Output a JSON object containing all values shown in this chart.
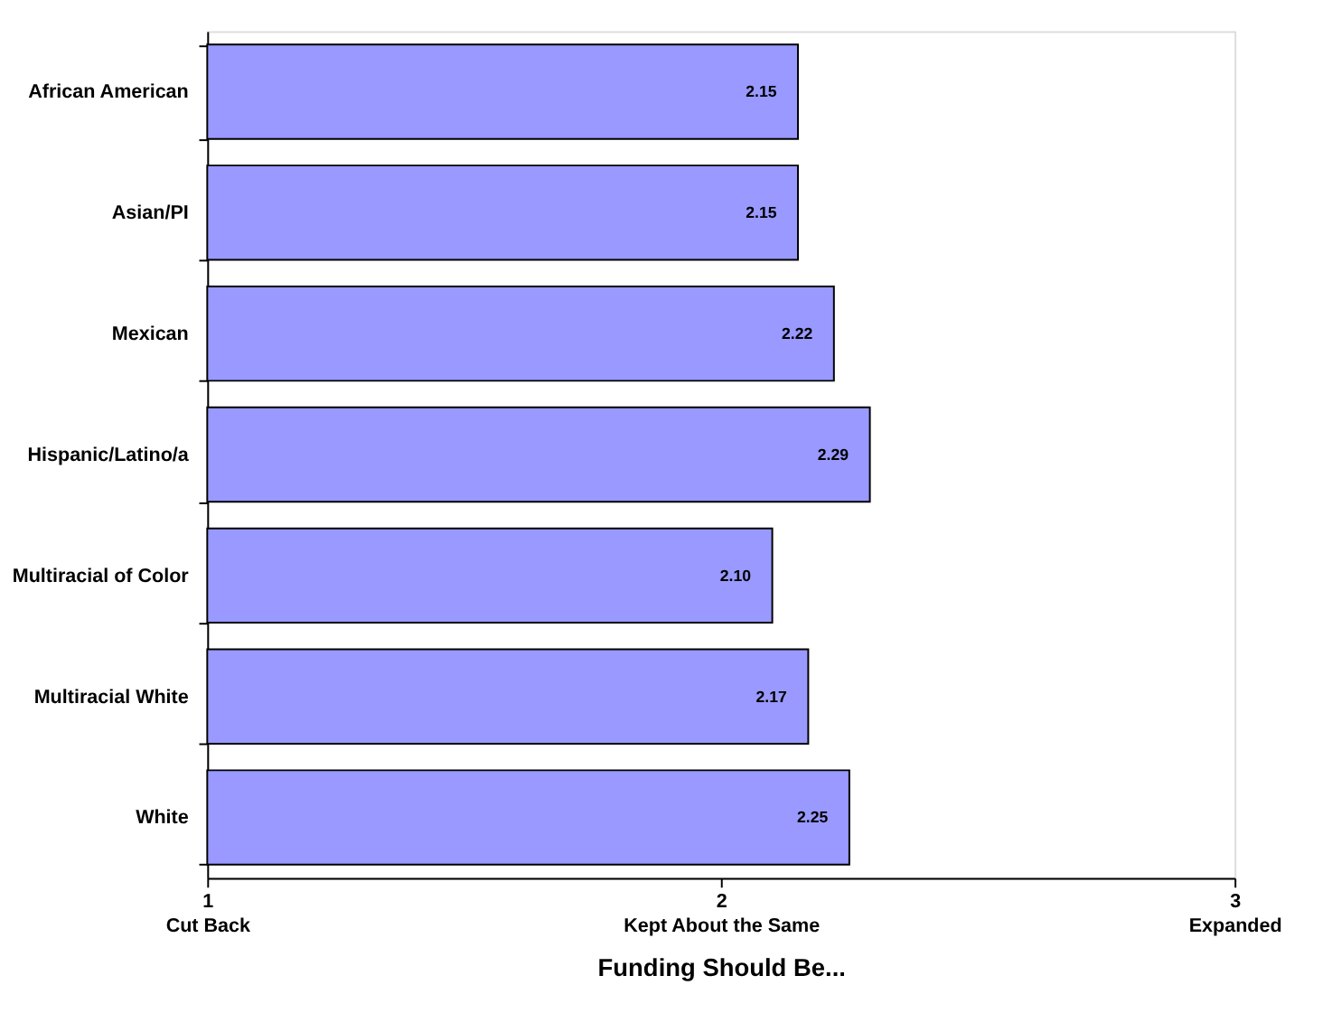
{
  "chart_data": {
    "type": "bar",
    "orientation": "horizontal",
    "xlabel": "Funding Should Be...",
    "categories": [
      "African American",
      "Asian/PI",
      "Mexican",
      "Hispanic/Latino/a",
      "Multiracial of Color",
      "Multiracial White",
      "White"
    ],
    "values": [
      2.15,
      2.15,
      2.22,
      2.29,
      2.1,
      2.17,
      2.25
    ],
    "value_labels": [
      "2.15",
      "2.15",
      "2.22",
      "2.29",
      "2.10",
      "2.17",
      "2.25"
    ],
    "color": "#9999ff",
    "xlim": [
      1,
      3
    ],
    "xticks": [
      {
        "value": 1,
        "label": "1\nCut Back"
      },
      {
        "value": 2,
        "label": "2\nKept About the Same"
      },
      {
        "value": 3,
        "label": "3\nExpanded"
      }
    ],
    "grid": false,
    "legend": false
  }
}
